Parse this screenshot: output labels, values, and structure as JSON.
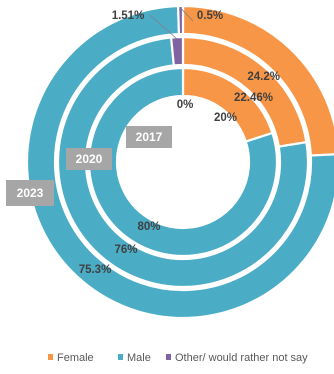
{
  "chart_data": {
    "type": "pie",
    "variant": "nested-donut",
    "rings": [
      {
        "label": "2023",
        "values": [
          24.2,
          75.3,
          0.5
        ],
        "labels": [
          "24.2%",
          "75.3%",
          "0.5%"
        ]
      },
      {
        "label": "2020",
        "values": [
          22.46,
          76,
          1.51
        ],
        "labels": [
          "22.46%",
          "76%",
          "1.51%"
        ]
      },
      {
        "label": "2017",
        "values": [
          20,
          80,
          0
        ],
        "labels": [
          "20%",
          "80%",
          "0%"
        ]
      }
    ],
    "series": [
      {
        "name": "Female",
        "color": "#F79646"
      },
      {
        "name": "Male",
        "color": "#4BACC6"
      },
      {
        "name": "Other/ would rather not say",
        "color": "#8064A2"
      }
    ],
    "legend_position": "bottom",
    "tag_color": "#A6A6A6"
  }
}
